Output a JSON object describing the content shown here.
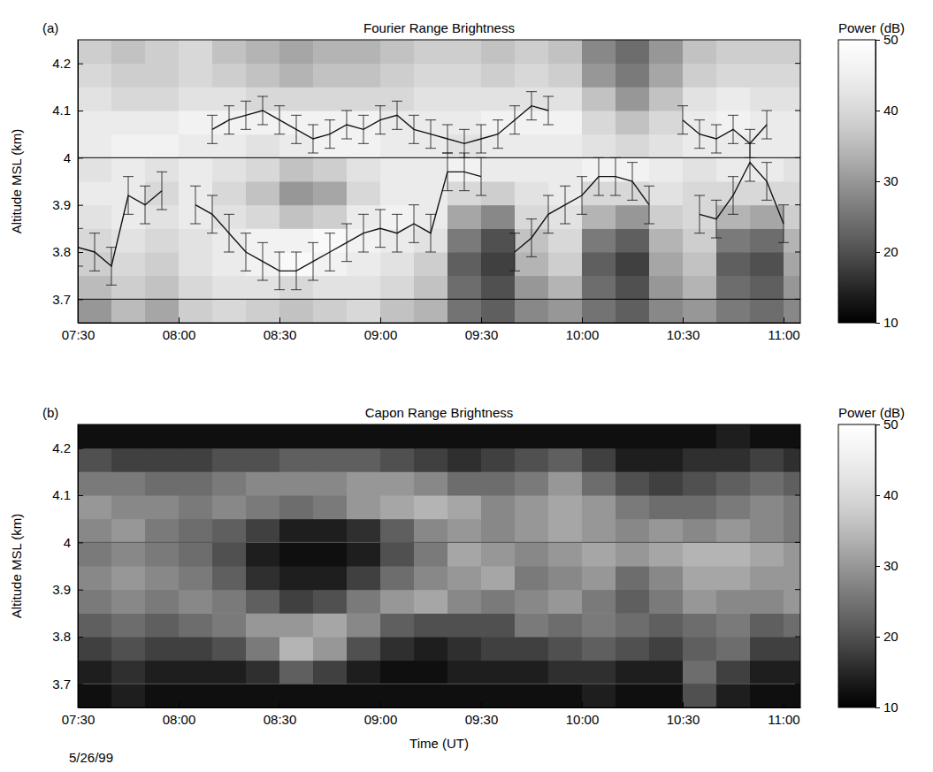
{
  "chart_data": [
    {
      "type": "heatmap",
      "panel": "(a)",
      "title": "Fourier Range Brightness",
      "ylabel": "Altitude MSL (km)",
      "color": "gray",
      "xlim": [
        450,
        665
      ],
      "xticks": [
        {
          "value": 450,
          "label": "07:30"
        },
        {
          "value": 480,
          "label": "08:00"
        },
        {
          "value": 510,
          "label": "08:30"
        },
        {
          "value": 540,
          "label": "09:00"
        },
        {
          "value": 570,
          "label": "09:30"
        },
        {
          "value": 600,
          "label": "10:00"
        },
        {
          "value": 630,
          "label": "10:30"
        },
        {
          "value": 660,
          "label": "11:00"
        }
      ],
      "ylim": [
        3.65,
        4.25
      ],
      "yticks": [
        3.7,
        3.8,
        3.9,
        4,
        4.1,
        4.2
      ],
      "x_bins": [
        450,
        460,
        470,
        480,
        490,
        500,
        510,
        520,
        530,
        540,
        550,
        560,
        570,
        580,
        590,
        600,
        610,
        620,
        630,
        640,
        650,
        660,
        665
      ],
      "y_bins": [
        3.65,
        3.7,
        3.75,
        3.8,
        3.85,
        3.9,
        3.95,
        4.0,
        4.05,
        4.1,
        4.15,
        4.2,
        4.25
      ],
      "z": [
        [
          30,
          35,
          32,
          38,
          40,
          38,
          36,
          38,
          40,
          36,
          34,
          25,
          22,
          28,
          30,
          25,
          22,
          28,
          30,
          26,
          24,
          28
        ],
        [
          35,
          38,
          36,
          40,
          42,
          42,
          40,
          42,
          42,
          40,
          36,
          24,
          20,
          30,
          34,
          24,
          20,
          30,
          34,
          24,
          22,
          30
        ],
        [
          38,
          40,
          38,
          42,
          44,
          46,
          48,
          46,
          44,
          42,
          38,
          22,
          18,
          34,
          38,
          22,
          18,
          32,
          36,
          22,
          20,
          32
        ],
        [
          40,
          42,
          40,
          42,
          44,
          46,
          46,
          48,
          46,
          44,
          42,
          26,
          20,
          36,
          40,
          26,
          22,
          34,
          38,
          26,
          24,
          34
        ],
        [
          42,
          44,
          42,
          44,
          42,
          40,
          36,
          38,
          44,
          46,
          44,
          32,
          28,
          40,
          42,
          34,
          30,
          38,
          40,
          34,
          32,
          38
        ],
        [
          44,
          44,
          40,
          44,
          40,
          36,
          30,
          32,
          40,
          44,
          44,
          40,
          38,
          42,
          44,
          40,
          40,
          42,
          40,
          40,
          40,
          40
        ],
        [
          42,
          44,
          42,
          44,
          42,
          40,
          36,
          38,
          42,
          44,
          44,
          46,
          44,
          44,
          44,
          46,
          46,
          44,
          42,
          44,
          44,
          42
        ],
        [
          44,
          46,
          46,
          44,
          44,
          42,
          44,
          46,
          46,
          44,
          44,
          42,
          44,
          44,
          44,
          42,
          40,
          42,
          44,
          44,
          44,
          44
        ],
        [
          44,
          44,
          44,
          46,
          46,
          46,
          46,
          46,
          46,
          44,
          44,
          44,
          46,
          46,
          46,
          40,
          36,
          40,
          44,
          46,
          44,
          44
        ],
        [
          42,
          40,
          40,
          42,
          42,
          40,
          40,
          40,
          40,
          40,
          42,
          42,
          42,
          42,
          42,
          36,
          30,
          36,
          42,
          44,
          42,
          42
        ],
        [
          40,
          38,
          38,
          40,
          38,
          36,
          34,
          36,
          36,
          38,
          40,
          40,
          38,
          40,
          38,
          30,
          26,
          32,
          38,
          40,
          40,
          40
        ],
        [
          38,
          36,
          38,
          40,
          36,
          34,
          32,
          34,
          34,
          36,
          38,
          38,
          36,
          38,
          36,
          28,
          24,
          30,
          36,
          38,
          38,
          38
        ]
      ],
      "colorbar": {
        "title": "Power (dB)",
        "range": [
          10,
          50
        ],
        "ticks": [
          10,
          20,
          30,
          40,
          50
        ]
      },
      "hlines": [
        3.7,
        4.0
      ],
      "series": [
        {
          "color": "#111111",
          "line_style": "solid",
          "x": [
            490,
            495,
            500,
            505,
            510,
            515,
            520,
            525,
            530,
            535,
            540,
            545,
            550,
            555,
            560,
            565,
            570,
            575,
            580,
            585,
            590,
            595,
            630,
            635,
            640,
            645,
            650,
            655
          ],
          "values": [
            4.06,
            4.08,
            4.09,
            4.1,
            4.08,
            4.06,
            4.04,
            4.05,
            4.07,
            4.06,
            4.08,
            4.09,
            4.06,
            4.05,
            4.04,
            4.03,
            4.04,
            4.05,
            4.08,
            4.11,
            4.1,
            null,
            4.08,
            4.05,
            4.04,
            4.06,
            4.03,
            4.07
          ],
          "error": [
            0.03,
            0.03,
            0.03,
            0.03,
            0.03,
            0.03,
            0.03,
            0.03,
            0.03,
            0.03,
            0.03,
            0.03,
            0.03,
            0.03,
            0.03,
            0.03,
            0.03,
            0.03,
            0.03,
            0.03,
            0.03,
            null,
            0.03,
            0.03,
            0.03,
            0.03,
            0.03,
            0.03
          ]
        },
        {
          "color": "#111111",
          "line_style": "solid",
          "x": [
            450,
            455,
            460,
            465,
            470,
            475,
            480,
            485,
            490,
            495,
            500,
            505,
            510,
            515,
            520,
            525,
            530,
            535,
            540,
            545,
            550,
            555,
            560,
            565,
            570,
            575,
            580,
            585,
            590,
            595,
            600,
            605,
            610,
            615,
            620,
            625,
            630,
            635,
            640,
            645,
            650,
            655,
            660
          ],
          "values": [
            3.81,
            3.8,
            3.77,
            3.92,
            3.9,
            3.93,
            null,
            3.9,
            3.88,
            3.84,
            3.8,
            3.78,
            3.76,
            3.76,
            3.78,
            3.8,
            3.82,
            3.84,
            3.85,
            3.84,
            3.86,
            3.84,
            3.97,
            3.97,
            3.96,
            null,
            3.8,
            3.83,
            3.88,
            3.9,
            3.92,
            3.96,
            3.96,
            3.95,
            3.9,
            null,
            null,
            3.88,
            3.87,
            3.92,
            3.99,
            3.95,
            3.86
          ],
          "error": [
            0.04,
            0.04,
            0.04,
            0.04,
            0.04,
            0.04,
            null,
            0.04,
            0.04,
            0.04,
            0.04,
            0.04,
            0.04,
            0.04,
            0.04,
            0.04,
            0.04,
            0.04,
            0.04,
            0.04,
            0.04,
            0.04,
            0.04,
            0.04,
            0.04,
            null,
            0.04,
            0.04,
            0.04,
            0.04,
            0.04,
            0.04,
            0.04,
            0.04,
            0.04,
            null,
            null,
            0.04,
            0.04,
            0.04,
            0.04,
            0.04,
            0.04
          ]
        }
      ]
    },
    {
      "type": "heatmap",
      "panel": "(b)",
      "title": "Capon Range Brightness",
      "ylabel": "Altitude MSL (km)",
      "xlabel": "Time (UT)",
      "annotation": "5/26/99",
      "color": "gray",
      "xlim": [
        450,
        665
      ],
      "xticks": [
        {
          "value": 450,
          "label": "07:30"
        },
        {
          "value": 480,
          "label": "08:00"
        },
        {
          "value": 510,
          "label": "08:30"
        },
        {
          "value": 540,
          "label": "09:00"
        },
        {
          "value": 570,
          "label": "09:30"
        },
        {
          "value": 600,
          "label": "10:00"
        },
        {
          "value": 630,
          "label": "10:30"
        },
        {
          "value": 660,
          "label": "11:00"
        }
      ],
      "ylim": [
        3.65,
        4.25
      ],
      "yticks": [
        3.7,
        3.8,
        3.9,
        4,
        4.1,
        4.2
      ],
      "x_bins": [
        450,
        460,
        470,
        480,
        490,
        500,
        510,
        520,
        530,
        540,
        550,
        560,
        570,
        580,
        590,
        600,
        610,
        620,
        630,
        640,
        650,
        660,
        665
      ],
      "y_bins": [
        3.65,
        3.7,
        3.75,
        3.8,
        3.85,
        3.9,
        3.95,
        4.0,
        4.05,
        4.1,
        4.15,
        4.2,
        4.25
      ],
      "z": [
        [
          12,
          14,
          12,
          12,
          12,
          12,
          12,
          12,
          12,
          12,
          12,
          12,
          12,
          12,
          12,
          14,
          12,
          12,
          20,
          14,
          12,
          12
        ],
        [
          14,
          16,
          14,
          14,
          14,
          16,
          22,
          18,
          14,
          12,
          12,
          14,
          14,
          14,
          16,
          16,
          14,
          14,
          24,
          18,
          14,
          14
        ],
        [
          18,
          20,
          18,
          18,
          20,
          26,
          34,
          30,
          20,
          16,
          14,
          16,
          18,
          18,
          20,
          22,
          20,
          18,
          22,
          24,
          18,
          18
        ],
        [
          22,
          24,
          22,
          24,
          26,
          30,
          30,
          32,
          28,
          22,
          20,
          20,
          20,
          26,
          24,
          26,
          24,
          22,
          24,
          26,
          22,
          24
        ],
        [
          26,
          28,
          26,
          28,
          26,
          22,
          18,
          20,
          26,
          30,
          32,
          28,
          26,
          28,
          30,
          26,
          22,
          26,
          30,
          28,
          28,
          30
        ],
        [
          28,
          30,
          28,
          26,
          22,
          16,
          14,
          14,
          18,
          24,
          28,
          30,
          32,
          26,
          28,
          30,
          24,
          28,
          32,
          32,
          30,
          30
        ],
        [
          26,
          28,
          26,
          24,
          20,
          14,
          12,
          12,
          14,
          20,
          26,
          32,
          30,
          28,
          30,
          32,
          30,
          32,
          34,
          34,
          32,
          30
        ],
        [
          28,
          30,
          26,
          24,
          22,
          18,
          14,
          14,
          16,
          22,
          28,
          30,
          28,
          30,
          32,
          30,
          28,
          30,
          28,
          30,
          28,
          26
        ],
        [
          30,
          28,
          28,
          26,
          28,
          26,
          24,
          26,
          30,
          32,
          34,
          32,
          28,
          30,
          32,
          30,
          26,
          24,
          24,
          26,
          28,
          26
        ],
        [
          26,
          26,
          24,
          24,
          26,
          28,
          28,
          28,
          30,
          30,
          28,
          24,
          24,
          26,
          30,
          24,
          20,
          18,
          20,
          22,
          24,
          22
        ],
        [
          20,
          18,
          18,
          18,
          20,
          20,
          22,
          22,
          22,
          20,
          18,
          16,
          18,
          20,
          22,
          18,
          14,
          14,
          16,
          16,
          18,
          16
        ],
        [
          12,
          12,
          12,
          12,
          12,
          12,
          12,
          12,
          12,
          12,
          12,
          12,
          12,
          12,
          12,
          12,
          12,
          12,
          12,
          14,
          12,
          12
        ]
      ],
      "colorbar": {
        "title": "Power (dB)",
        "range": [
          10,
          50
        ],
        "ticks": [
          10,
          20,
          30,
          40,
          50
        ]
      },
      "hlines": [
        3.7,
        4.0
      ]
    }
  ]
}
